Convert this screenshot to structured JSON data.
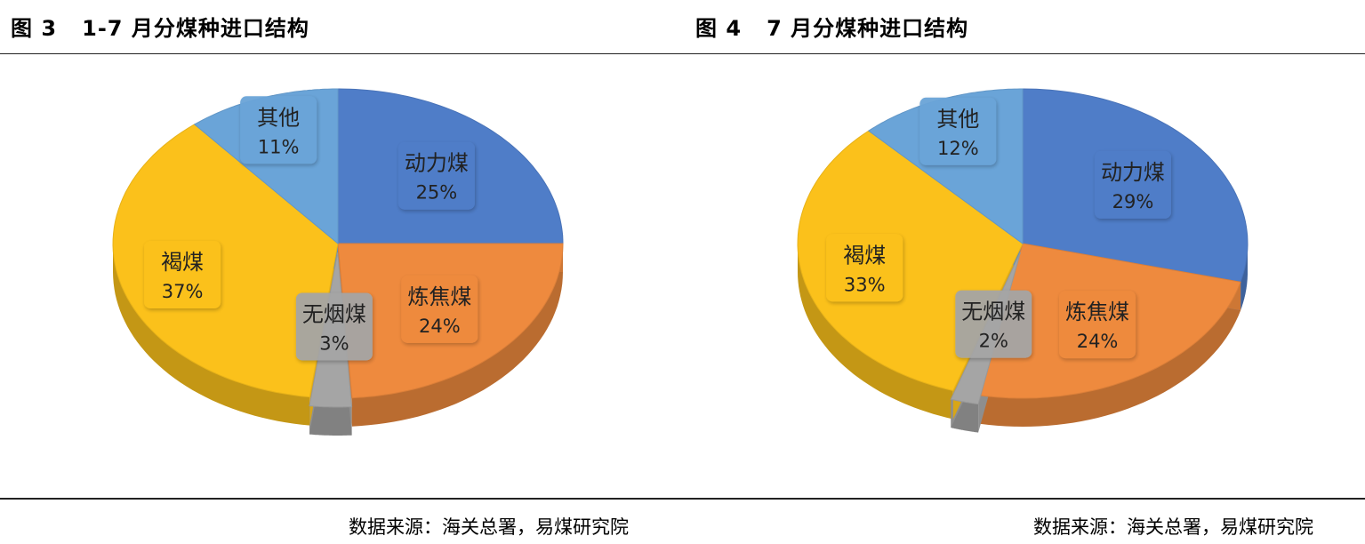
{
  "titles": {
    "left": "图 3   1-7 月分煤种进口结构",
    "right": "图 4   7 月分煤种进口结构"
  },
  "sources": {
    "left": "数据来源：海关总署，易煤研究院",
    "right": "数据来源：海关总署，易煤研究院"
  },
  "chart_data": [
    {
      "type": "pie",
      "title": "图 3   1-7 月分煤种进口结构",
      "labels": [
        "动力煤",
        "炼焦煤",
        "无烟煤",
        "褐煤",
        "其他"
      ],
      "values": [
        25,
        24,
        3,
        37,
        11
      ],
      "value_labels": [
        "25%",
        "24%",
        "3%",
        "37%",
        "11%"
      ],
      "colors": [
        "#4f7dc8",
        "#ee8a3e",
        "#a5a5a5",
        "#fbc11b",
        "#6aa4d8"
      ]
    },
    {
      "type": "pie",
      "title": "图 4   7 月分煤种进口结构",
      "labels": [
        "动力煤",
        "炼焦煤",
        "无烟煤",
        "褐煤",
        "其他"
      ],
      "values": [
        29,
        24,
        2,
        33,
        12
      ],
      "value_labels": [
        "29%",
        "24%",
        "2%",
        "33%",
        "12%"
      ],
      "colors": [
        "#4f7dc8",
        "#ee8a3e",
        "#a5a5a5",
        "#fbc11b",
        "#6aa4d8"
      ]
    }
  ]
}
